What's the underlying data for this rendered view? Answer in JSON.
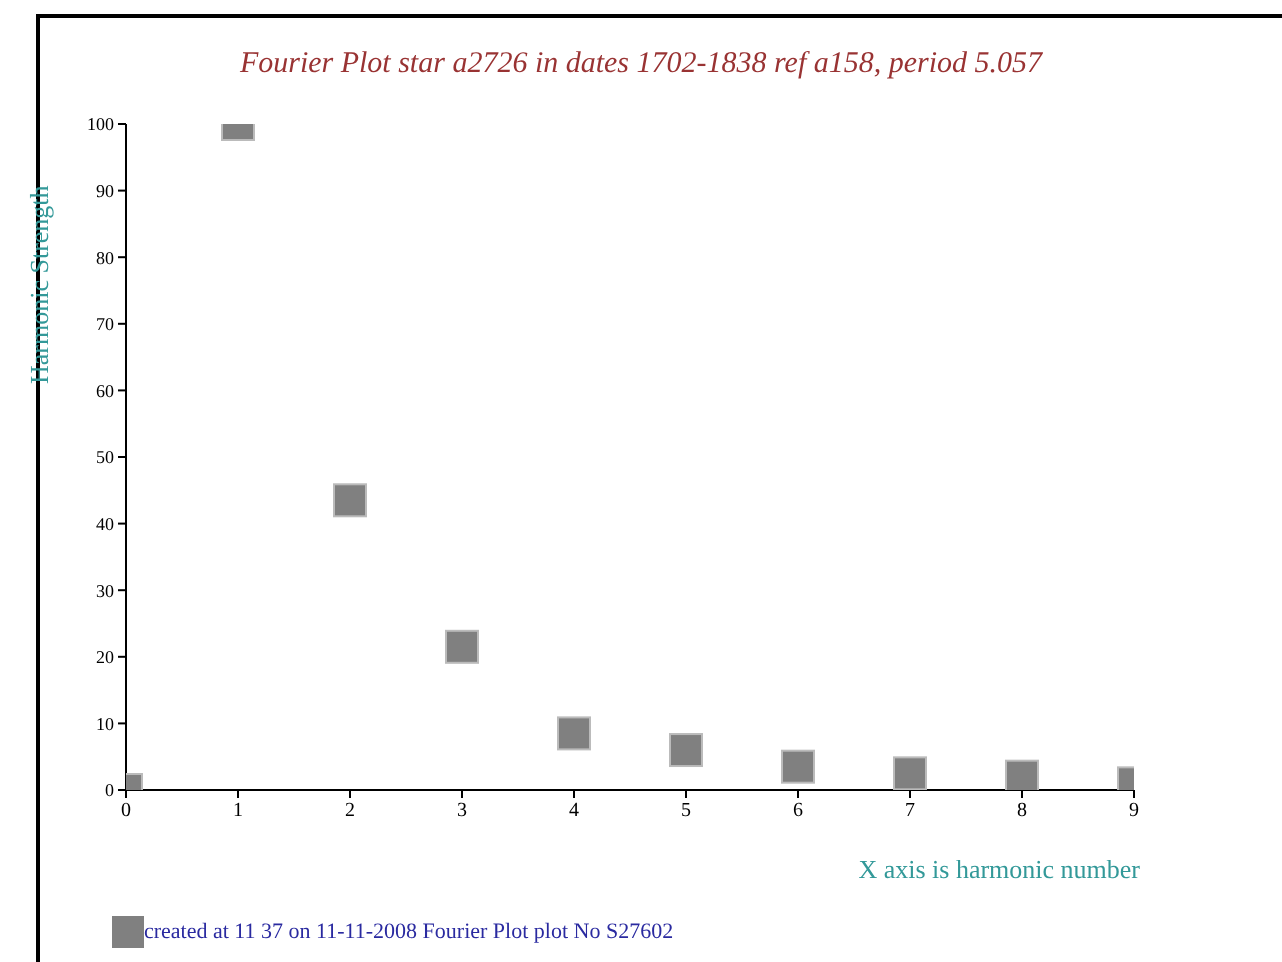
{
  "chart_data": {
    "type": "scatter",
    "title": "Fourier Plot star a2726 in dates 1702-1838 ref a158, period 5.057",
    "xlabel": "X axis is harmonic number",
    "ylabel": "Harmonic Strength",
    "annotations": [
      "created at 11 37 on 11-11-2008 Fourier Plot plot No S27602"
    ],
    "x": [
      0,
      1,
      2,
      3,
      4,
      5,
      6,
      7,
      8,
      9
    ],
    "values": [
      0,
      100,
      43.5,
      21.5,
      8.5,
      6,
      3.5,
      2.5,
      2,
      1
    ],
    "color": "#808080",
    "marker": "square",
    "xlim": [
      0,
      9
    ],
    "xticks": [
      0,
      1,
      2,
      3,
      4,
      5,
      6,
      7,
      8,
      9
    ],
    "ylim": [
      0,
      100
    ],
    "yticks": [
      0,
      10,
      20,
      30,
      40,
      50,
      60,
      70,
      80,
      90,
      100
    ],
    "grid": false,
    "legend": false
  }
}
